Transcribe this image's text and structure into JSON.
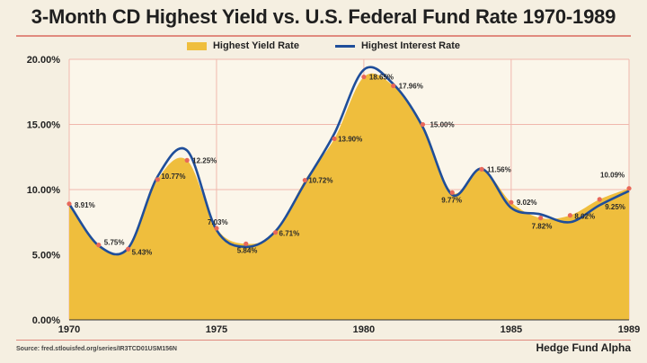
{
  "title": "3-Month CD Highest Yield vs. U.S. Federal Fund Rate 1970-1989",
  "legend": {
    "area_label": "Highest Yield Rate",
    "line_label": "Highest Interest Rate"
  },
  "footer": {
    "source": "Source: fred.stlouisfed.org/series/IR3TCD01USM156N",
    "brand": "Hedge Fund Alpha"
  },
  "colors": {
    "area": "#efbe3d",
    "line": "#1f4e9a",
    "marker": "#e8685a",
    "grid": "#f0b8ad",
    "background": "#f5efe1"
  },
  "chart_data": {
    "type": "area",
    "grid": true,
    "legend_position": "top",
    "xlim": [
      1970,
      1989
    ],
    "ylim": [
      0,
      20
    ],
    "x_ticks": [
      1970,
      1975,
      1980,
      1985,
      1989
    ],
    "y_ticks": [
      0,
      5,
      10,
      15,
      20
    ],
    "y_tick_labels": [
      "0.00%",
      "5.00%",
      "10.00%",
      "15.00%",
      "20.00%"
    ],
    "x": [
      1970,
      1971,
      1972,
      1973,
      1974,
      1975,
      1976,
      1977,
      1978,
      1979,
      1980,
      1981,
      1982,
      1983,
      1984,
      1985,
      1986,
      1987,
      1988,
      1989
    ],
    "series": [
      {
        "name": "Highest Yield Rate",
        "kind": "area",
        "values": [
          8.91,
          5.75,
          5.43,
          10.77,
          12.25,
          7.03,
          5.84,
          6.71,
          10.72,
          13.9,
          18.65,
          17.96,
          15.0,
          9.77,
          11.56,
          9.02,
          7.82,
          8.02,
          9.25,
          10.09
        ]
      },
      {
        "name": "Highest Interest Rate",
        "kind": "line",
        "values": [
          8.9,
          5.7,
          5.5,
          11.0,
          13.0,
          6.9,
          5.6,
          6.8,
          10.5,
          14.3,
          19.2,
          18.1,
          14.8,
          9.6,
          11.6,
          8.6,
          8.1,
          7.5,
          8.8,
          9.9
        ]
      }
    ],
    "data_labels": [
      {
        "x": 1970,
        "value": 8.91,
        "text": "8.91%"
      },
      {
        "x": 1971,
        "value": 5.75,
        "text": "5.75%"
      },
      {
        "x": 1972,
        "value": 5.43,
        "text": "5.43%"
      },
      {
        "x": 1973,
        "value": 10.77,
        "text": "10.77%"
      },
      {
        "x": 1974,
        "value": 12.25,
        "text": "12.25%"
      },
      {
        "x": 1975,
        "value": 7.03,
        "text": "7.03%"
      },
      {
        "x": 1976,
        "value": 5.84,
        "text": "5.84%"
      },
      {
        "x": 1977,
        "value": 6.71,
        "text": "6.71%"
      },
      {
        "x": 1978,
        "value": 10.72,
        "text": "10.72%"
      },
      {
        "x": 1979,
        "value": 13.9,
        "text": "13.90%"
      },
      {
        "x": 1980,
        "value": 18.65,
        "text": "18.65%"
      },
      {
        "x": 1981,
        "value": 17.96,
        "text": "17.96%"
      },
      {
        "x": 1982,
        "value": 15.0,
        "text": "15.00%"
      },
      {
        "x": 1983,
        "value": 9.77,
        "text": "9.77%"
      },
      {
        "x": 1984,
        "value": 11.56,
        "text": "11.56%"
      },
      {
        "x": 1985,
        "value": 9.02,
        "text": "9.02%"
      },
      {
        "x": 1986,
        "value": 7.82,
        "text": "7.82%"
      },
      {
        "x": 1987,
        "value": 8.02,
        "text": "8.02%"
      },
      {
        "x": 1988,
        "value": 9.25,
        "text": "9.25%"
      },
      {
        "x": 1989,
        "value": 10.09,
        "text": "10.09%"
      }
    ]
  }
}
